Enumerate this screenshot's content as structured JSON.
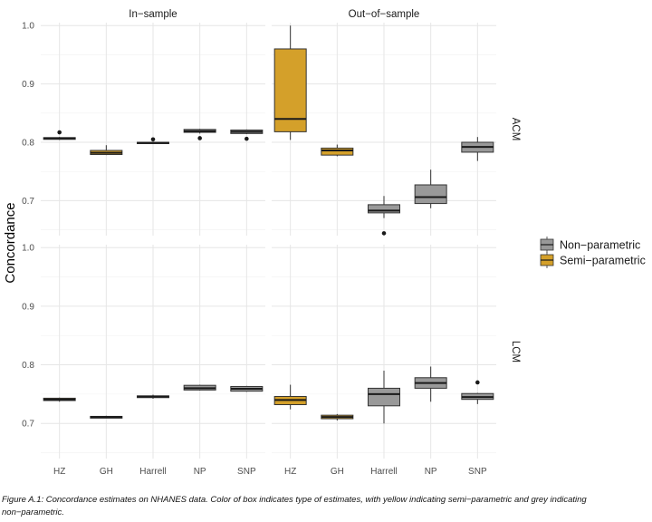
{
  "chart_data": {
    "type": "box",
    "ylabel": "Concordance",
    "ylim": [
      0.64,
      1.005
    ],
    "yticks": [
      0.7,
      0.8,
      0.9,
      1.0
    ],
    "categories": [
      "HZ",
      "GH",
      "Harrell",
      "NP",
      "SNP"
    ],
    "columns": [
      "In−sample",
      "Out−of−sample"
    ],
    "rows": [
      "ACM",
      "LCM"
    ],
    "legend": {
      "position": "right",
      "entries": [
        {
          "label": "Non−parametric",
          "color": "#999999"
        },
        {
          "label": "Semi−parametric",
          "color": "#D4A02A"
        }
      ]
    },
    "grid": true,
    "panels": [
      {
        "row": "ACM",
        "col": "In−sample",
        "boxes": [
          {
            "category": "HZ",
            "type": "Semi−parametric",
            "min": 0.804,
            "q1": 0.805,
            "median": 0.807,
            "q3": 0.808,
            "max": 0.809,
            "outliers": [
              0.817
            ]
          },
          {
            "category": "GH",
            "type": "Semi−parametric",
            "min": 0.778,
            "q1": 0.779,
            "median": 0.782,
            "q3": 0.786,
            "max": 0.795,
            "outliers": []
          },
          {
            "category": "Harrell",
            "type": "Non−parametric",
            "min": 0.797,
            "q1": 0.798,
            "median": 0.799,
            "q3": 0.8,
            "max": 0.801,
            "outliers": [
              0.805
            ]
          },
          {
            "category": "NP",
            "type": "Non−parametric",
            "min": 0.815,
            "q1": 0.817,
            "median": 0.819,
            "q3": 0.822,
            "max": 0.823,
            "outliers": [
              0.807
            ]
          },
          {
            "category": "SNP",
            "type": "Non−parametric",
            "min": 0.814,
            "q1": 0.815,
            "median": 0.818,
            "q3": 0.821,
            "max": 0.822,
            "outliers": [
              0.806
            ]
          }
        ]
      },
      {
        "row": "ACM",
        "col": "Out−of−sample",
        "boxes": [
          {
            "category": "HZ",
            "type": "Semi−parametric",
            "min": 0.804,
            "q1": 0.818,
            "median": 0.84,
            "q3": 0.96,
            "max": 1.0,
            "outliers": []
          },
          {
            "category": "GH",
            "type": "Semi−parametric",
            "min": 0.776,
            "q1": 0.778,
            "median": 0.786,
            "q3": 0.79,
            "max": 0.796,
            "outliers": []
          },
          {
            "category": "Harrell",
            "type": "Non−parametric",
            "min": 0.67,
            "q1": 0.679,
            "median": 0.683,
            "q3": 0.693,
            "max": 0.708,
            "outliers": [
              0.644
            ]
          },
          {
            "category": "NP",
            "type": "Non−parametric",
            "min": 0.687,
            "q1": 0.695,
            "median": 0.706,
            "q3": 0.727,
            "max": 0.753,
            "outliers": []
          },
          {
            "category": "SNP",
            "type": "Non−parametric",
            "min": 0.768,
            "q1": 0.783,
            "median": 0.792,
            "q3": 0.8,
            "max": 0.809,
            "outliers": []
          }
        ]
      },
      {
        "row": "LCM",
        "col": "In−sample",
        "boxes": [
          {
            "category": "HZ",
            "type": "Semi−parametric",
            "min": 0.737,
            "q1": 0.739,
            "median": 0.741,
            "q3": 0.743,
            "max": 0.744,
            "outliers": []
          },
          {
            "category": "GH",
            "type": "Semi−parametric",
            "min": 0.709,
            "q1": 0.709,
            "median": 0.711,
            "q3": 0.712,
            "max": 0.713,
            "outliers": []
          },
          {
            "category": "Harrell",
            "type": "Non−parametric",
            "min": 0.742,
            "q1": 0.744,
            "median": 0.746,
            "q3": 0.747,
            "max": 0.749,
            "outliers": []
          },
          {
            "category": "NP",
            "type": "Non−parametric",
            "min": 0.756,
            "q1": 0.757,
            "median": 0.76,
            "q3": 0.765,
            "max": 0.766,
            "outliers": []
          },
          {
            "category": "SNP",
            "type": "Non−parametric",
            "min": 0.754,
            "q1": 0.755,
            "median": 0.759,
            "q3": 0.763,
            "max": 0.764,
            "outliers": []
          }
        ]
      },
      {
        "row": "LCM",
        "col": "Out−of−sample",
        "boxes": [
          {
            "category": "HZ",
            "type": "Semi−parametric",
            "min": 0.724,
            "q1": 0.732,
            "median": 0.74,
            "q3": 0.746,
            "max": 0.766,
            "outliers": []
          },
          {
            "category": "GH",
            "type": "Semi−parametric",
            "min": 0.705,
            "q1": 0.708,
            "median": 0.711,
            "q3": 0.714,
            "max": 0.716,
            "outliers": []
          },
          {
            "category": "Harrell",
            "type": "Non−parametric",
            "min": 0.7,
            "q1": 0.73,
            "median": 0.75,
            "q3": 0.76,
            "max": 0.79,
            "outliers": []
          },
          {
            "category": "NP",
            "type": "Non−parametric",
            "min": 0.737,
            "q1": 0.76,
            "median": 0.769,
            "q3": 0.778,
            "max": 0.797,
            "outliers": []
          },
          {
            "category": "SNP",
            "type": "Non−parametric",
            "min": 0.733,
            "q1": 0.741,
            "median": 0.745,
            "q3": 0.751,
            "max": 0.752,
            "outliers": [
              0.77
            ]
          }
        ]
      }
    ]
  },
  "caption": "Figure A.1: Concordance estimates on NHANES data. Color of box indicates type of estimates, with yellow indicating semi−parametric and grey indicating non−parametric."
}
